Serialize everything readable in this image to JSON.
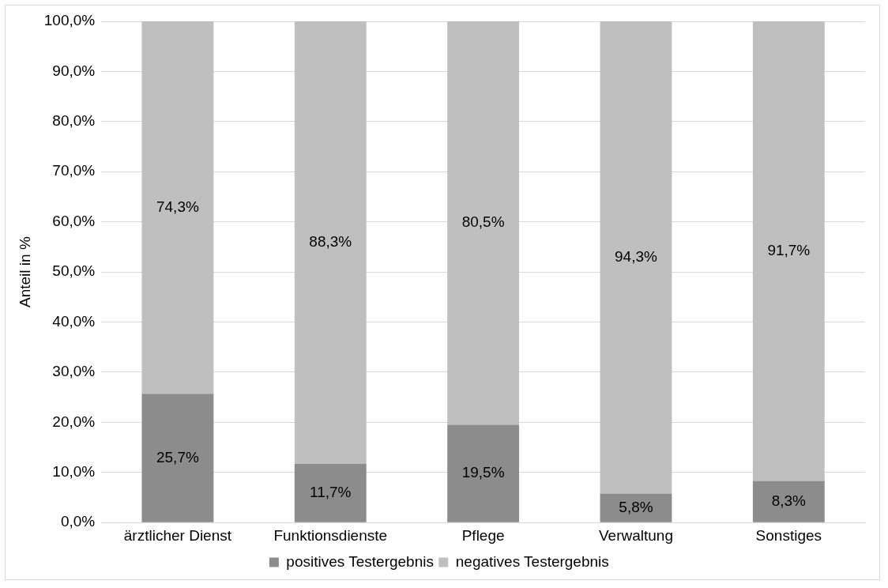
{
  "chart_data": {
    "type": "bar",
    "stacked": true,
    "ylabel": "Anteil in %",
    "categories": [
      "ärztlicher Dienst",
      "Funktionsdienste",
      "Pflege",
      "Verwaltung",
      "Sonstiges"
    ],
    "series": [
      {
        "name": "positives Testergebnis",
        "color": "#8c8c8c",
        "values": [
          25.7,
          11.7,
          19.5,
          5.8,
          8.3
        ],
        "value_labels": [
          "25,7%",
          "11,7%",
          "19,5%",
          "5,8%",
          "8,3%"
        ]
      },
      {
        "name": "negatives Testergebnis",
        "color": "#bfbfbf",
        "values": [
          74.3,
          88.3,
          80.5,
          94.3,
          91.7
        ],
        "value_labels": [
          "74,3%",
          "88,3%",
          "80,5%",
          "94,3%",
          "91,7%"
        ]
      }
    ],
    "ylim": [
      0,
      100
    ],
    "yticks": [
      {
        "value": 0,
        "label": "0,0%"
      },
      {
        "value": 10,
        "label": "10,0%"
      },
      {
        "value": 20,
        "label": "20,0%"
      },
      {
        "value": 30,
        "label": "30,0%"
      },
      {
        "value": 40,
        "label": "40,0%"
      },
      {
        "value": 50,
        "label": "50,0%"
      },
      {
        "value": 60,
        "label": "60,0%"
      },
      {
        "value": 70,
        "label": "70,0%"
      },
      {
        "value": 80,
        "label": "80,0%"
      },
      {
        "value": 90,
        "label": "90,0%"
      },
      {
        "value": 100,
        "label": "100,0%"
      }
    ],
    "grid": "y",
    "legend": "bottom"
  }
}
